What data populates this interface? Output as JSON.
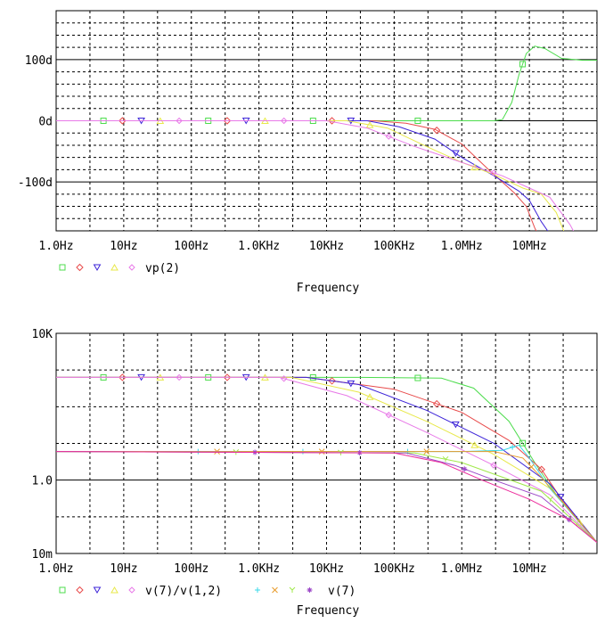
{
  "chart_data": [
    {
      "type": "line",
      "xscale": "log",
      "xlim": [
        1,
        100000000
      ],
      "ylim": [
        -180,
        180
      ],
      "xticks": [
        {
          "value": 1,
          "label": "1.0Hz"
        },
        {
          "value": 10,
          "label": "10Hz"
        },
        {
          "value": 100,
          "label": "100Hz"
        },
        {
          "value": 1000,
          "label": "1.0KHz"
        },
        {
          "value": 10000,
          "label": "10KHz"
        },
        {
          "value": 100000,
          "label": "100KHz"
        },
        {
          "value": 1000000,
          "label": "1.0MHz"
        },
        {
          "value": 10000000,
          "label": "10MHz"
        }
      ],
      "yticks": [
        {
          "value": 100,
          "label": "100d"
        },
        {
          "value": 0,
          "label": "0d"
        },
        {
          "value": -100,
          "label": "-100d"
        }
      ],
      "xlabel": "Frequency",
      "legend_label": "vp(2)",
      "grid": true,
      "series": [
        {
          "color": "#4cdc4c",
          "marker": "square",
          "points": [
            [
              1,
              0
            ],
            [
              100000,
              0
            ],
            [
              1000000,
              0
            ],
            [
              3000000,
              0
            ],
            [
              4000000,
              2
            ],
            [
              5500000,
              30
            ],
            [
              7000000,
              75
            ],
            [
              9000000,
              110
            ],
            [
              12000000,
              122
            ],
            [
              17000000,
              118
            ],
            [
              30000000,
              102
            ],
            [
              60000000,
              99
            ],
            [
              100000000,
              99
            ]
          ]
        },
        {
          "color": "#e84a4a",
          "marker": "diamond",
          "points": [
            [
              1,
              0
            ],
            [
              50000,
              0
            ],
            [
              150000,
              -4
            ],
            [
              400000,
              -14
            ],
            [
              1000000,
              -38
            ],
            [
              2500000,
              -80
            ],
            [
              6000000,
              -118
            ],
            [
              9000000,
              -140
            ],
            [
              12000000,
              -175
            ],
            [
              14000000,
              -190
            ]
          ]
        },
        {
          "color": "#3d24d8",
          "marker": "triangle-down",
          "points": [
            [
              1,
              0
            ],
            [
              40000,
              0
            ],
            [
              120000,
              -10
            ],
            [
              400000,
              -30
            ],
            [
              1000000,
              -60
            ],
            [
              3000000,
              -90
            ],
            [
              7000000,
              -115
            ],
            [
              10000000,
              -130
            ],
            [
              15000000,
              -165
            ],
            [
              20000000,
              -185
            ]
          ]
        },
        {
          "color": "#e8e84a",
          "marker": "triangle-up",
          "points": [
            [
              1,
              0
            ],
            [
              20000,
              0
            ],
            [
              80000,
              -12
            ],
            [
              300000,
              -42
            ],
            [
              1000000,
              -68
            ],
            [
              3000000,
              -88
            ],
            [
              8000000,
              -110
            ],
            [
              15000000,
              -120
            ],
            [
              25000000,
              -150
            ],
            [
              35000000,
              -190
            ]
          ]
        },
        {
          "color": "#e87ae8",
          "marker": "diamond-small",
          "points": [
            [
              1,
              0
            ],
            [
              10000,
              0
            ],
            [
              40000,
              -12
            ],
            [
              200000,
              -42
            ],
            [
              1000000,
              -68
            ],
            [
              4000000,
              -90
            ],
            [
              10000000,
              -110
            ],
            [
              20000000,
              -125
            ],
            [
              40000000,
              -170
            ],
            [
              50000000,
              -190
            ]
          ]
        }
      ]
    },
    {
      "type": "line",
      "xscale": "log",
      "yscale": "log",
      "xlim": [
        1,
        100000000
      ],
      "ylim": [
        0.01,
        10000
      ],
      "xticks": [
        {
          "value": 1,
          "label": "1.0Hz"
        },
        {
          "value": 10,
          "label": "10Hz"
        },
        {
          "value": 100,
          "label": "100Hz"
        },
        {
          "value": 1000,
          "label": "1.0KHz"
        },
        {
          "value": 10000,
          "label": "10KHz"
        },
        {
          "value": 100000,
          "label": "100KHz"
        },
        {
          "value": 1000000,
          "label": "1.0MHz"
        },
        {
          "value": 10000000,
          "label": "10MHz"
        }
      ],
      "yticks": [
        {
          "value": 10000,
          "label": "10K"
        },
        {
          "value": 1,
          "label": "1.0"
        },
        {
          "value": 0.01,
          "label": "10m"
        }
      ],
      "xlabel": "Frequency",
      "legend_label_1": "v(7)/v(1,2)",
      "legend_label_2": "v(7)",
      "grid": true,
      "series": [
        {
          "color": "#4cdc4c",
          "marker": "square",
          "points": [
            [
              1,
              630
            ],
            [
              30000,
              630
            ],
            [
              500000,
              600
            ],
            [
              1500000,
              320
            ],
            [
              5000000,
              40
            ],
            [
              12000000,
              3
            ],
            [
              25000000,
              0.4
            ],
            [
              60000000,
              0.06
            ],
            [
              100000000,
              0.02
            ]
          ]
        },
        {
          "color": "#e84a4a",
          "marker": "diamond",
          "points": [
            [
              1,
              630
            ],
            [
              5000,
              630
            ],
            [
              100000,
              300
            ],
            [
              1000000,
              70
            ],
            [
              5000000,
              12
            ],
            [
              15000000,
              2
            ],
            [
              30000000,
              0.3
            ],
            [
              100000000,
              0.02
            ]
          ]
        },
        {
          "color": "#3d24d8",
          "marker": "triangle-down",
          "points": [
            [
              1,
              630
            ],
            [
              5000,
              630
            ],
            [
              30000,
              400
            ],
            [
              300000,
              80
            ],
            [
              3000000,
              10
            ],
            [
              20000000,
              0.8
            ],
            [
              100000000,
              0.02
            ]
          ]
        },
        {
          "color": "#e8e84a",
          "marker": "triangle-up",
          "points": [
            [
              1,
              630
            ],
            [
              3000,
              630
            ],
            [
              30000,
              250
            ],
            [
              300000,
              40
            ],
            [
              3000000,
              5
            ],
            [
              20000000,
              0.6
            ],
            [
              100000000,
              0.02
            ]
          ]
        },
        {
          "color": "#e87ae8",
          "marker": "diamond-small",
          "points": [
            [
              1,
              630
            ],
            [
              2000,
              630
            ],
            [
              20000,
              200
            ],
            [
              300000,
              20
            ],
            [
              3000000,
              2.5
            ],
            [
              20000000,
              0.4
            ],
            [
              100000000,
              0.02
            ]
          ]
        },
        {
          "color": "#38d8e8",
          "marker": "plus",
          "points": [
            [
              1,
              6
            ],
            [
              300000,
              6
            ],
            [
              1000000,
              6
            ],
            [
              4000000,
              6.5
            ],
            [
              7000000,
              9
            ],
            [
              10000000,
              4
            ],
            [
              20000000,
              0.6
            ],
            [
              100000000,
              0.02
            ]
          ]
        },
        {
          "color": "#e89c2c",
          "marker": "x",
          "points": [
            [
              1,
              6
            ],
            [
              300000,
              6
            ],
            [
              3000000,
              6
            ],
            [
              8000000,
              4
            ],
            [
              15000000,
              1.2
            ],
            [
              100000000,
              0.02
            ]
          ]
        },
        {
          "color": "#a0e84a",
          "marker": "y",
          "points": [
            [
              1,
              6
            ],
            [
              200000,
              5.5
            ],
            [
              1000000,
              3
            ],
            [
              4000000,
              1.2
            ],
            [
              15000000,
              0.5
            ],
            [
              100000000,
              0.02
            ]
          ]
        },
        {
          "color": "#9c48c8",
          "marker": "star",
          "points": [
            [
              1,
              6
            ],
            [
              150000,
              5.5
            ],
            [
              800000,
              2.5
            ],
            [
              3000000,
              1
            ],
            [
              15000000,
              0.35
            ],
            [
              100000000,
              0.02
            ]
          ]
        },
        {
          "color": "#ec2c9c",
          "marker": "none",
          "points": [
            [
              1,
              6
            ],
            [
              100000,
              5.5
            ],
            [
              500000,
              3
            ],
            [
              2000000,
              1
            ],
            [
              10000000,
              0.3
            ],
            [
              40000000,
              0.08
            ],
            [
              100000000,
              0.02
            ]
          ]
        }
      ]
    }
  ]
}
